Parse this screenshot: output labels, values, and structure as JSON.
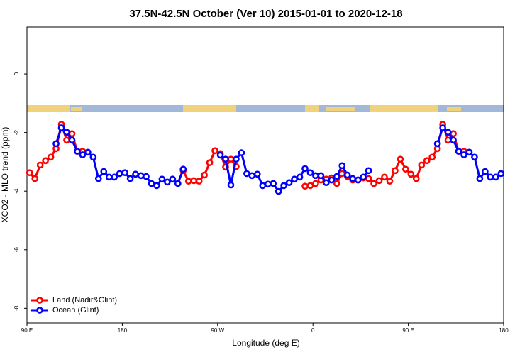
{
  "chart_data": {
    "type": "line",
    "title": "37.5N-42.5N October (Ver 10)   2015-01-01 to 2020-12-18",
    "x_label": "Longitude (deg E)",
    "y_label": "XCO2 - MLO trend (ppm)",
    "xlim": [
      90,
      540
    ],
    "ylim": [
      -8.5,
      1.6
    ],
    "xticks": [
      {
        "value": 90,
        "label": "90 E"
      },
      180,
      {
        "value": 270,
        "label": "90 W"
      },
      {
        "value": 360,
        "label": "0"
      },
      {
        "value": 450,
        "label": "90 E"
      },
      {
        "value": 540,
        "label": "180"
      }
    ],
    "yticks": [
      0,
      -2,
      -4,
      -6,
      -8
    ],
    "legend": "bottom-left",
    "x": [
      92.5,
      97.5,
      102.5,
      107.5,
      112.5,
      117.5,
      122.5,
      127.5,
      132.5,
      137.5,
      142.5,
      147.5,
      152.5,
      157.5,
      162.5,
      167.5,
      172.5,
      177.5,
      182.5,
      187.5,
      192.5,
      197.5,
      202.5,
      207.5,
      212.5,
      217.5,
      222.5,
      227.5,
      232.5,
      237.5,
      242.5,
      247.5,
      252.5,
      257.5,
      262.5,
      267.5,
      272.5,
      277.5,
      282.5,
      287.5,
      292.5,
      297.5,
      302.5,
      307.5,
      312.5,
      317.5,
      322.5,
      327.5,
      332.5,
      337.5,
      342.5,
      347.5,
      352.5,
      357.5,
      362.5,
      367.5,
      372.5,
      377.5,
      382.5,
      387.5,
      392.5,
      397.5,
      402.5,
      407.5,
      412.5,
      417.5,
      422.5,
      427.5,
      432.5,
      437.5,
      442.5,
      447.5,
      452.5,
      457.5,
      462.5,
      467.5,
      472.5,
      477.5,
      482.5,
      487.5,
      492.5,
      497.5,
      502.5,
      507.5,
      512.5,
      517.5,
      522.5,
      527.5,
      532.5,
      537.5
    ],
    "series": [
      {
        "name": "Land (Nadir&Glint)",
        "color": "#ff0000",
        "values": [
          -3.37,
          -3.57,
          -3.11,
          -2.96,
          -2.84,
          -2.55,
          -1.72,
          -2.26,
          -2.04,
          -2.64,
          -2.64,
          null,
          null,
          null,
          null,
          null,
          null,
          null,
          null,
          null,
          null,
          null,
          null,
          null,
          null,
          null,
          null,
          null,
          null,
          -3.3,
          -3.66,
          -3.64,
          -3.66,
          -3.45,
          -3.03,
          -2.62,
          -2.72,
          -3.18,
          -2.91,
          -3.16,
          null,
          null,
          null,
          null,
          null,
          null,
          null,
          null,
          null,
          null,
          null,
          null,
          -3.83,
          -3.81,
          -3.74,
          -3.62,
          -3.59,
          -3.55,
          -3.74,
          -3.4,
          -3.5,
          -3.62,
          -3.62,
          -3.55,
          -3.57,
          -3.74,
          -3.64,
          -3.52,
          -3.66,
          -3.3,
          -2.91,
          -3.25,
          -3.42,
          -3.57,
          -3.11,
          -2.96,
          -2.84,
          -2.55,
          -1.72,
          -2.26,
          -2.04,
          -2.64,
          -2.64,
          null,
          null,
          null,
          null,
          null,
          null,
          null
        ]
      },
      {
        "name": "Ocean (Glint)",
        "color": "#0000ff",
        "values": [
          null,
          null,
          null,
          null,
          null,
          -2.38,
          -1.84,
          -1.99,
          -2.26,
          -2.64,
          -2.76,
          -2.67,
          -2.84,
          -3.57,
          -3.33,
          -3.52,
          -3.52,
          -3.4,
          -3.37,
          -3.57,
          -3.42,
          -3.47,
          -3.5,
          -3.74,
          -3.81,
          -3.59,
          -3.69,
          -3.59,
          -3.74,
          -3.25,
          null,
          null,
          null,
          null,
          null,
          null,
          -2.77,
          -2.91,
          -3.79,
          -2.91,
          -2.69,
          -3.4,
          -3.47,
          -3.42,
          -3.81,
          -3.76,
          -3.74,
          -4.01,
          -3.81,
          -3.71,
          -3.59,
          -3.52,
          -3.23,
          -3.37,
          -3.47,
          -3.47,
          -3.71,
          -3.62,
          -3.5,
          -3.13,
          -3.45,
          -3.57,
          -3.62,
          -3.52,
          -3.3,
          null,
          null,
          null,
          null,
          null,
          null,
          null,
          null,
          null,
          null,
          null,
          null,
          -2.38,
          -1.84,
          -1.99,
          -2.26,
          -2.64,
          -2.76,
          -2.67,
          -2.84,
          -3.57,
          -3.33,
          -3.52,
          -3.52,
          -3.4
        ]
      }
    ]
  }
}
